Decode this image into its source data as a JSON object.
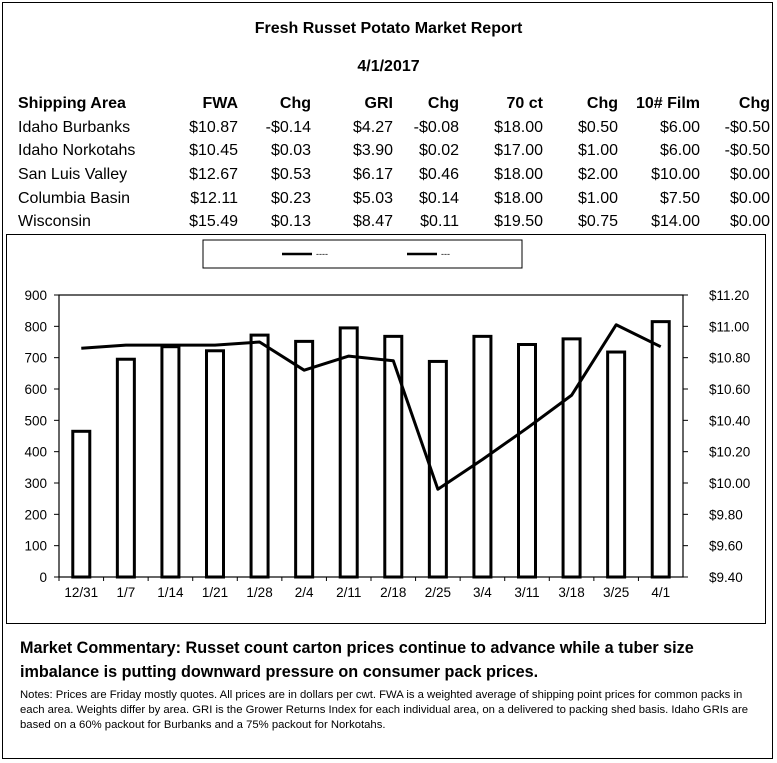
{
  "report": {
    "title": "Fresh Russet Potato Market Report",
    "date": "4/1/2017"
  },
  "table": {
    "headers": [
      "Shipping Area",
      "FWA",
      "Chg",
      "GRI",
      "Chg",
      "70 ct",
      "Chg",
      "10# Film",
      "Chg"
    ],
    "rows": [
      [
        "Idaho Burbanks",
        "$10.87",
        "-$0.14",
        "$4.27",
        "-$0.08",
        "$18.00",
        "$0.50",
        "$6.00",
        "-$0.50"
      ],
      [
        "Idaho Norkotahs",
        "$10.45",
        "$0.03",
        "$3.90",
        "$0.02",
        "$17.00",
        "$1.00",
        "$6.00",
        "-$0.50"
      ],
      [
        "San Luis Valley",
        "$12.67",
        "$0.53",
        "$6.17",
        "$0.46",
        "$18.00",
        "$2.00",
        "$10.00",
        "$0.00"
      ],
      [
        "Columbia Basin",
        "$12.11",
        "$0.23",
        "$5.03",
        "$0.14",
        "$18.00",
        "$1.00",
        "$7.50",
        "$0.00"
      ],
      [
        "Wisconsin",
        "$15.49",
        "$0.13",
        "$8.47",
        "$0.11",
        "$19.50",
        "$0.75",
        "$14.00",
        "$0.00"
      ]
    ]
  },
  "chart_data": {
    "type": "bar",
    "categories": [
      "12/31",
      "1/7",
      "1/14",
      "1/21",
      "1/28",
      "2/4",
      "2/11",
      "2/18",
      "2/25",
      "3/4",
      "3/11",
      "3/18",
      "3/25",
      "4/1"
    ],
    "series": [
      {
        "type": "bar",
        "axis": "left",
        "values": [
          465,
          695,
          735,
          722,
          772,
          752,
          795,
          768,
          688,
          768,
          742,
          760,
          718,
          815
        ]
      },
      {
        "type": "line",
        "axis": "right",
        "values": [
          10.86,
          10.88,
          10.88,
          10.88,
          10.9,
          10.72,
          10.81,
          10.78,
          9.96,
          10.15,
          10.35,
          10.56,
          11.01,
          10.87
        ]
      }
    ],
    "legend": {
      "position": "top-center",
      "entries": [
        "----",
        "---"
      ]
    },
    "y_left": {
      "min": 0,
      "max": 900,
      "ticks": [
        "0",
        "100",
        "200",
        "300",
        "400",
        "500",
        "600",
        "700",
        "800",
        "900"
      ]
    },
    "y_right": {
      "min": 9.4,
      "max": 11.2,
      "ticks": [
        "$9.40",
        "$9.60",
        "$9.80",
        "$10.00",
        "$10.20",
        "$10.40",
        "$10.60",
        "$10.80",
        "$11.00",
        "$11.20"
      ]
    },
    "grid": false
  },
  "commentary": "Market Commentary: Russet count carton prices continue to advance while a tuber size imbalance is putting downward pressure on consumer pack prices.",
  "notes": "Notes: Prices are Friday mostly quotes. All prices are in dollars per cwt. FWA is a weighted average of shipping point prices for  common packs in each area. Weights differ by area. GRI is the Grower Returns Index for each individual area, on a delivered to packing shed basis. Idaho GRIs are based on a 60% packout for Burbanks and a 75% packout for Norkotahs."
}
